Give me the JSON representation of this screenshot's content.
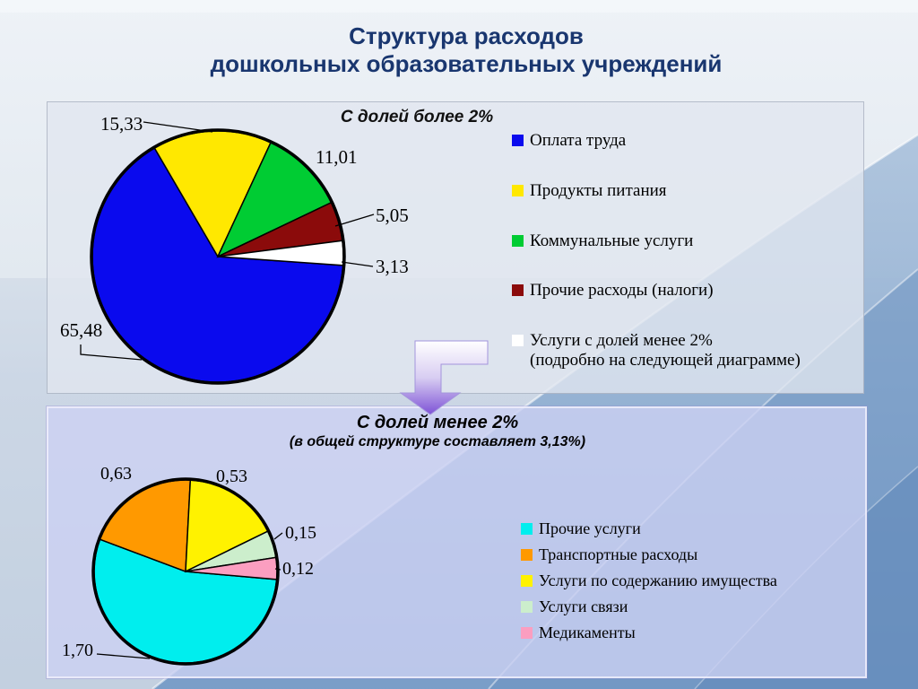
{
  "slide": {
    "title_lines": [
      "Структура расходов",
      "дошкольных образовательных учреждений"
    ],
    "title_color": "#19366f"
  },
  "arrow": {
    "gradient_top": "#ffffff",
    "gradient_mid": "#d8cdf2",
    "gradient_bottom": "#7e52d6"
  },
  "chart_data": [
    {
      "type": "pie",
      "title": "С долей более 2%",
      "unit": "percent of total expenses",
      "start_angle_deg": 94,
      "legend_position": "right",
      "slices": [
        {
          "label": "Оплата труда",
          "value": 65.48,
          "value_text": "65,48",
          "color": "#0a0aee"
        },
        {
          "label": "Продукты питания",
          "value": 15.33,
          "value_text": "15,33",
          "color": "#ffe800"
        },
        {
          "label": "Коммунальные услуги",
          "value": 11.01,
          "value_text": "11,01",
          "color": "#00cc33"
        },
        {
          "label": "Прочие расходы (налоги)",
          "value": 5.05,
          "value_text": "5,05",
          "color": "#8b0b0b"
        },
        {
          "label": "Услуги с долей менее 2%",
          "label_line2": "(подробно на следующей диаграмме)",
          "value": 3.13,
          "value_text": "3,13",
          "color": "#ffffff"
        }
      ]
    },
    {
      "type": "pie",
      "title": "С долей менее 2%",
      "subtitle": "(в общей структуре составляет 3,13%)",
      "unit": "percent of total expenses",
      "start_angle_deg": 95,
      "legend_position": "right",
      "slices": [
        {
          "label": "Прочие услуги",
          "value": 1.7,
          "value_text": "1,70",
          "color": "#00eeee"
        },
        {
          "label": "Транспортные расходы",
          "value": 0.63,
          "value_text": "0,63",
          "color": "#ff9900"
        },
        {
          "label": "Услуги по содержанию имущества",
          "value": 0.53,
          "value_text": "0,53",
          "color": "#fff200"
        },
        {
          "label": "Услуги связи",
          "value": 0.15,
          "value_text": "0,15",
          "color": "#cceecc"
        },
        {
          "label": "Медикаменты",
          "value": 0.12,
          "value_text": "0,12",
          "color": "#fb9ec0"
        }
      ]
    }
  ]
}
